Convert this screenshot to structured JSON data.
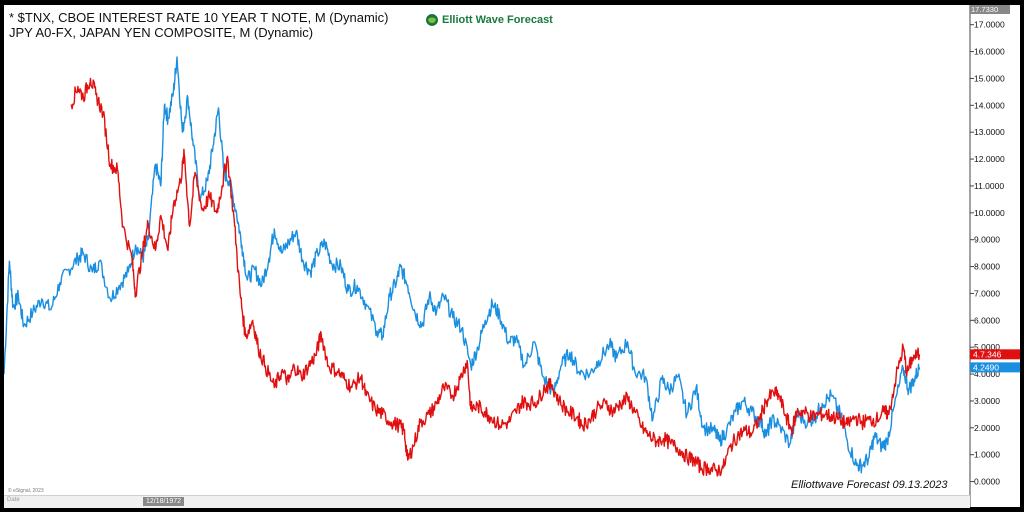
{
  "legend": {
    "line1": "* $TNX, CBOE INTEREST RATE 10 YEAR T NOTE, M (Dynamic)",
    "line2": "JPY A0-FX, JAPAN YEN COMPOSITE, M (Dynamic)"
  },
  "logo": {
    "text": "Elliott Wave Forecast",
    "icon": "globe-icon"
  },
  "watermark": "Elliottwave Forecast  09.13.2023",
  "credit": "© eSignal, 2023",
  "start_date_label": "12/18/1972",
  "date_axis_label": "Date",
  "colors": {
    "tnx": "#1a8fe0",
    "jpy": "#e01010"
  },
  "chart_data": {
    "type": "line",
    "xlim": [
      1972.9,
      2026.5
    ],
    "ylim": [
      -0.5,
      17.733
    ],
    "grid": false,
    "x_ticks": [
      "1980",
      "1985",
      "1990",
      "1995",
      "2000",
      "2005",
      "2010",
      "2015",
      "2020"
    ],
    "y_ticks": [
      "0.0000",
      "1.0000",
      "2.0000",
      "3.0000",
      "4.0000",
      "5.0000",
      "6.0000",
      "7.0000",
      "8.0000",
      "9.0000",
      "10.0000",
      "11.0000",
      "12.0000",
      "13.0000",
      "14.0000",
      "15.0000",
      "16.0000",
      "17.0000"
    ],
    "top_value_label": "17.7330",
    "series": [
      {
        "id": "tnx",
        "color": "#1a8fe0",
        "last_value_label": "4.2490",
        "last_value": 4.249,
        "points": [
          [
            1972.9,
            4.0
          ],
          [
            1973.2,
            8.2
          ],
          [
            1973.4,
            6.5
          ],
          [
            1973.7,
            6.9
          ],
          [
            1974.0,
            5.8
          ],
          [
            1974.5,
            6.3
          ],
          [
            1975.0,
            6.8
          ],
          [
            1975.5,
            6.4
          ],
          [
            1976.0,
            7.4
          ],
          [
            1976.5,
            7.9
          ],
          [
            1977.0,
            8.3
          ],
          [
            1977.3,
            8.5
          ],
          [
            1977.8,
            7.8
          ],
          [
            1978.2,
            8.2
          ],
          [
            1978.8,
            6.8
          ],
          [
            1979.3,
            7.3
          ],
          [
            1979.8,
            7.8
          ],
          [
            1980.2,
            8.8
          ],
          [
            1980.6,
            8.3
          ],
          [
            1980.9,
            9.0
          ],
          [
            1981.3,
            11.8
          ],
          [
            1981.6,
            11.0
          ],
          [
            1981.8,
            14.0
          ],
          [
            1982.0,
            13.5
          ],
          [
            1982.3,
            14.5
          ],
          [
            1982.5,
            15.8
          ],
          [
            1982.8,
            13.0
          ],
          [
            1983.1,
            14.3
          ],
          [
            1983.4,
            12.5
          ],
          [
            1983.8,
            10.5
          ],
          [
            1984.2,
            11.2
          ],
          [
            1984.5,
            12.5
          ],
          [
            1984.8,
            13.9
          ],
          [
            1985.1,
            11.5
          ],
          [
            1985.4,
            11.2
          ],
          [
            1985.8,
            10.0
          ],
          [
            1986.1,
            8.8
          ],
          [
            1986.4,
            7.5
          ],
          [
            1986.8,
            7.9
          ],
          [
            1987.2,
            7.3
          ],
          [
            1987.6,
            8.3
          ],
          [
            1987.9,
            9.4
          ],
          [
            1988.3,
            8.5
          ],
          [
            1988.7,
            8.9
          ],
          [
            1989.1,
            9.3
          ],
          [
            1989.5,
            8.2
          ],
          [
            1989.9,
            7.8
          ],
          [
            1990.3,
            8.5
          ],
          [
            1990.7,
            8.9
          ],
          [
            1991.1,
            8.1
          ],
          [
            1991.6,
            8.0
          ],
          [
            1992.0,
            7.1
          ],
          [
            1992.5,
            7.3
          ],
          [
            1993.0,
            6.6
          ],
          [
            1993.6,
            5.6
          ],
          [
            1993.9,
            5.4
          ],
          [
            1994.3,
            6.9
          ],
          [
            1994.7,
            7.5
          ],
          [
            1994.9,
            8.0
          ],
          [
            1995.3,
            7.3
          ],
          [
            1995.7,
            6.3
          ],
          [
            1996.1,
            5.8
          ],
          [
            1996.5,
            6.9
          ],
          [
            1996.9,
            6.3
          ],
          [
            1997.3,
            6.9
          ],
          [
            1997.8,
            6.1
          ],
          [
            1998.3,
            5.7
          ],
          [
            1998.8,
            4.3
          ],
          [
            1999.2,
            5.0
          ],
          [
            1999.6,
            6.0
          ],
          [
            2000.0,
            6.6
          ],
          [
            2000.4,
            6.2
          ],
          [
            2000.9,
            5.2
          ],
          [
            2001.3,
            5.3
          ],
          [
            2001.8,
            4.3
          ],
          [
            2002.3,
            5.2
          ],
          [
            2002.8,
            3.9
          ],
          [
            2003.4,
            3.3
          ],
          [
            2003.8,
            4.3
          ],
          [
            2004.3,
            4.8
          ],
          [
            2004.8,
            4.1
          ],
          [
            2005.4,
            4.0
          ],
          [
            2005.9,
            4.5
          ],
          [
            2006.5,
            5.1
          ],
          [
            2006.9,
            4.6
          ],
          [
            2007.5,
            5.2
          ],
          [
            2007.9,
            4.1
          ],
          [
            2008.5,
            3.9
          ],
          [
            2008.9,
            2.3
          ],
          [
            2009.4,
            3.8
          ],
          [
            2009.8,
            3.4
          ],
          [
            2010.3,
            3.9
          ],
          [
            2010.8,
            2.5
          ],
          [
            2011.3,
            3.5
          ],
          [
            2011.7,
            2.0
          ],
          [
            2012.3,
            1.9
          ],
          [
            2012.6,
            1.5
          ],
          [
            2013.0,
            1.9
          ],
          [
            2013.5,
            2.6
          ],
          [
            2013.9,
            3.0
          ],
          [
            2014.4,
            2.6
          ],
          [
            2014.9,
            2.2
          ],
          [
            2015.2,
            1.7
          ],
          [
            2015.5,
            2.3
          ],
          [
            2015.9,
            2.1
          ],
          [
            2016.5,
            1.4
          ],
          [
            2016.9,
            2.5
          ],
          [
            2017.5,
            2.2
          ],
          [
            2017.9,
            2.4
          ],
          [
            2018.3,
            2.9
          ],
          [
            2018.8,
            3.2
          ],
          [
            2019.3,
            2.5
          ],
          [
            2019.7,
            1.5
          ],
          [
            2020.2,
            0.6
          ],
          [
            2020.5,
            0.6
          ],
          [
            2020.9,
            0.9
          ],
          [
            2021.2,
            1.7
          ],
          [
            2021.6,
            1.3
          ],
          [
            2021.9,
            1.5
          ],
          [
            2022.3,
            2.8
          ],
          [
            2022.8,
            4.2
          ],
          [
            2023.1,
            3.4
          ],
          [
            2023.4,
            3.8
          ],
          [
            2023.7,
            4.25
          ]
        ]
      },
      {
        "id": "jpy",
        "color": "#e01010",
        "last_value_label": "4.7.346",
        "last_value": 4.7346,
        "points": [
          [
            1976.6,
            14.0
          ],
          [
            1977.0,
            14.7
          ],
          [
            1977.3,
            14.3
          ],
          [
            1977.7,
            15.0
          ],
          [
            1978.0,
            14.4
          ],
          [
            1978.4,
            13.7
          ],
          [
            1978.8,
            11.8
          ],
          [
            1979.2,
            11.6
          ],
          [
            1979.5,
            9.5
          ],
          [
            1980.0,
            8.3
          ],
          [
            1980.2,
            7.0
          ],
          [
            1980.6,
            8.6
          ],
          [
            1980.9,
            9.6
          ],
          [
            1981.3,
            8.6
          ],
          [
            1981.6,
            9.9
          ],
          [
            1982.0,
            8.6
          ],
          [
            1982.3,
            10.3
          ],
          [
            1982.7,
            11.2
          ],
          [
            1982.9,
            12.2
          ],
          [
            1983.2,
            9.5
          ],
          [
            1983.5,
            11.5
          ],
          [
            1983.9,
            10.1
          ],
          [
            1984.3,
            10.6
          ],
          [
            1984.7,
            10.0
          ],
          [
            1985.0,
            11.0
          ],
          [
            1985.3,
            12.1
          ],
          [
            1985.7,
            9.5
          ],
          [
            1986.0,
            7.0
          ],
          [
            1986.3,
            5.4
          ],
          [
            1986.7,
            6.0
          ],
          [
            1987.0,
            5.0
          ],
          [
            1987.4,
            4.3
          ],
          [
            1987.9,
            3.5
          ],
          [
            1988.3,
            4.1
          ],
          [
            1988.7,
            3.7
          ],
          [
            1989.0,
            4.3
          ],
          [
            1989.4,
            3.9
          ],
          [
            1989.8,
            4.3
          ],
          [
            1990.2,
            4.7
          ],
          [
            1990.5,
            5.5
          ],
          [
            1990.9,
            4.3
          ],
          [
            1991.4,
            4.1
          ],
          [
            1991.8,
            3.8
          ],
          [
            1992.2,
            3.5
          ],
          [
            1992.7,
            3.9
          ],
          [
            1993.0,
            3.2
          ],
          [
            1993.5,
            2.7
          ],
          [
            1993.9,
            2.5
          ],
          [
            1994.4,
            2.2
          ],
          [
            1994.8,
            2.1
          ],
          [
            1995.1,
            1.9
          ],
          [
            1995.3,
            0.8
          ],
          [
            1995.6,
            1.3
          ],
          [
            1996.0,
            2.2
          ],
          [
            1996.5,
            2.5
          ],
          [
            1996.9,
            2.9
          ],
          [
            1997.3,
            3.5
          ],
          [
            1997.8,
            3.2
          ],
          [
            1998.2,
            3.8
          ],
          [
            1998.6,
            4.5
          ],
          [
            1998.8,
            2.7
          ],
          [
            1999.2,
            2.8
          ],
          [
            1999.6,
            2.6
          ],
          [
            1999.9,
            2.4
          ],
          [
            2000.4,
            2.1
          ],
          [
            2000.9,
            2.2
          ],
          [
            2001.3,
            2.6
          ],
          [
            2001.7,
            3.0
          ],
          [
            2002.0,
            2.9
          ],
          [
            2002.5,
            3.0
          ],
          [
            2002.9,
            3.5
          ],
          [
            2003.3,
            3.6
          ],
          [
            2003.7,
            3.0
          ],
          [
            2004.2,
            2.6
          ],
          [
            2004.7,
            2.4
          ],
          [
            2005.0,
            2.1
          ],
          [
            2005.4,
            2.3
          ],
          [
            2005.8,
            2.7
          ],
          [
            2006.3,
            2.9
          ],
          [
            2006.7,
            2.6
          ],
          [
            2007.1,
            2.9
          ],
          [
            2007.5,
            3.1
          ],
          [
            2007.9,
            2.6
          ],
          [
            2008.3,
            2.0
          ],
          [
            2008.7,
            1.7
          ],
          [
            2009.1,
            1.5
          ],
          [
            2009.5,
            1.6
          ],
          [
            2009.9,
            1.4
          ],
          [
            2010.4,
            1.2
          ],
          [
            2010.8,
            0.9
          ],
          [
            2011.2,
            0.8
          ],
          [
            2011.6,
            0.5
          ],
          [
            2012.0,
            0.5
          ],
          [
            2012.4,
            0.4
          ],
          [
            2012.8,
            0.5
          ],
          [
            2013.2,
            1.3
          ],
          [
            2013.6,
            1.7
          ],
          [
            2014.0,
            1.9
          ],
          [
            2014.4,
            1.8
          ],
          [
            2014.8,
            2.3
          ],
          [
            2015.2,
            3.0
          ],
          [
            2015.6,
            3.3
          ],
          [
            2015.9,
            3.2
          ],
          [
            2016.3,
            2.4
          ],
          [
            2016.6,
            1.9
          ],
          [
            2016.9,
            2.6
          ],
          [
            2017.3,
            2.6
          ],
          [
            2017.7,
            2.4
          ],
          [
            2018.1,
            2.5
          ],
          [
            2018.5,
            2.5
          ],
          [
            2018.9,
            2.4
          ],
          [
            2019.3,
            2.3
          ],
          [
            2019.7,
            2.1
          ],
          [
            2020.1,
            2.4
          ],
          [
            2020.5,
            2.2
          ],
          [
            2020.9,
            2.3
          ],
          [
            2021.3,
            2.3
          ],
          [
            2021.7,
            2.6
          ],
          [
            2022.0,
            2.5
          ],
          [
            2022.4,
            3.9
          ],
          [
            2022.8,
            5.0
          ],
          [
            2023.0,
            4.0
          ],
          [
            2023.3,
            4.6
          ],
          [
            2023.7,
            4.73
          ]
        ]
      }
    ]
  }
}
